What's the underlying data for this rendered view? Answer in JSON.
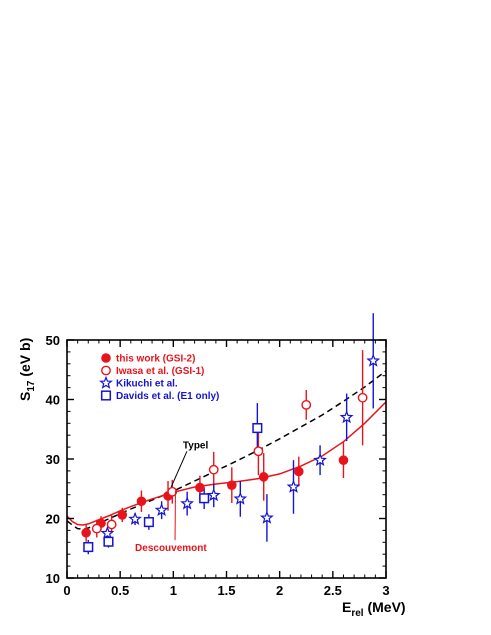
{
  "chart_data": {
    "type": "scatter",
    "xlabel_main": "E",
    "xlabel_sub": "rel",
    "xlabel_unit": " (MeV)",
    "ylabel_main": "S",
    "ylabel_sub": "17",
    "ylabel_unit": " (eV b)",
    "xlim": [
      0,
      3
    ],
    "ylim": [
      10,
      50
    ],
    "xticks": [
      0,
      0.5,
      1,
      1.5,
      2,
      2.5,
      3
    ],
    "xtick_labels": [
      "0",
      "0.5",
      "1",
      "1.5",
      "2",
      "2.5",
      "3"
    ],
    "yticks": [
      10,
      20,
      30,
      40,
      50
    ],
    "ytick_labels": [
      "10",
      "20",
      "30",
      "40",
      "50"
    ],
    "legend_placement": "top-left",
    "colors": {
      "red": "#e8141c",
      "blue": "#1414d2",
      "black": "#000000"
    },
    "series": [
      {
        "name": "this work (GSI-2)",
        "marker": "filled-circle",
        "color": "#e8141c",
        "points": [
          {
            "x": 0.18,
            "y": 17.6,
            "err": 1.5
          },
          {
            "x": 0.32,
            "y": 19.2,
            "err": 1.2
          },
          {
            "x": 0.52,
            "y": 20.6,
            "err": 1.2
          },
          {
            "x": 0.7,
            "y": 22.9,
            "err": 1.8
          },
          {
            "x": 0.95,
            "y": 23.8,
            "err": 2.5
          },
          {
            "x": 1.25,
            "y": 25.2,
            "err": 2.0
          },
          {
            "x": 1.55,
            "y": 25.6,
            "err": 3.0
          },
          {
            "x": 1.85,
            "y": 27.0,
            "err": 4.0
          },
          {
            "x": 2.18,
            "y": 27.9,
            "err": 2.5
          },
          {
            "x": 2.6,
            "y": 29.8,
            "err": 3.0
          }
        ]
      },
      {
        "name": "Iwasa et al. (GSI-1)",
        "marker": "open-circle",
        "color": "#e8141c",
        "points": [
          {
            "x": 0.28,
            "y": 18.3,
            "err": 1.5
          },
          {
            "x": 0.42,
            "y": 19.0,
            "err": 1.5
          },
          {
            "x": 0.99,
            "y": 24.5,
            "err": 2.0
          },
          {
            "x": 1.38,
            "y": 28.2,
            "err": 3.0
          },
          {
            "x": 1.8,
            "y": 31.3,
            "err": 4.0
          },
          {
            "x": 2.25,
            "y": 39.1,
            "err": 2.5
          },
          {
            "x": 2.78,
            "y": 40.3,
            "err": 8.0
          }
        ]
      },
      {
        "name": "Kikuchi et al.",
        "marker": "open-star",
        "color": "#1414d2",
        "points": [
          {
            "x": 0.38,
            "y": 17.5,
            "err": 1.0
          },
          {
            "x": 0.64,
            "y": 19.9,
            "err": 1.0
          },
          {
            "x": 0.89,
            "y": 21.4,
            "err": 1.5
          },
          {
            "x": 1.13,
            "y": 22.5,
            "err": 2.0
          },
          {
            "x": 1.38,
            "y": 23.9,
            "err": 2.0
          },
          {
            "x": 1.63,
            "y": 23.3,
            "err": 3.0
          },
          {
            "x": 1.88,
            "y": 20.1,
            "err": 4.0
          },
          {
            "x": 2.13,
            "y": 25.3,
            "err": 4.5
          },
          {
            "x": 2.38,
            "y": 29.8,
            "err": 2.5
          },
          {
            "x": 2.63,
            "y": 37.0,
            "err": 4.0
          },
          {
            "x": 2.88,
            "y": 46.5,
            "err": 8.0
          }
        ]
      },
      {
        "name": "Davids et al. (E1 only)",
        "marker": "open-square",
        "color": "#1414d2",
        "points": [
          {
            "x": 0.2,
            "y": 15.2,
            "err": 1.2
          },
          {
            "x": 0.39,
            "y": 16.1,
            "err": 1.0
          },
          {
            "x": 0.77,
            "y": 19.4,
            "err": 1.3
          },
          {
            "x": 1.29,
            "y": 23.4,
            "err": 1.8
          },
          {
            "x": 1.79,
            "y": 35.2,
            "err": 4.2
          }
        ]
      }
    ],
    "curves": [
      {
        "label": "Typel",
        "style": "dashed",
        "color": "#000000",
        "x": [
          0.0,
          0.05,
          0.1,
          0.15,
          0.2,
          0.3,
          0.4,
          0.5,
          0.6,
          0.8,
          1.0,
          1.2,
          1.4,
          1.6,
          1.8,
          2.0,
          2.2,
          2.4,
          2.6,
          2.8,
          3.0
        ],
        "y": [
          19.6,
          18.9,
          18.3,
          18.2,
          18.4,
          19.2,
          20.0,
          20.8,
          21.6,
          23.1,
          24.6,
          26.3,
          28.0,
          29.7,
          31.5,
          33.4,
          35.4,
          37.4,
          39.7,
          42.1,
          44.8
        ]
      },
      {
        "label": "Descouvemont",
        "style": "solid",
        "color": "#e8141c",
        "x": [
          0.0,
          0.05,
          0.1,
          0.15,
          0.2,
          0.3,
          0.4,
          0.5,
          0.6,
          0.8,
          1.0,
          1.2,
          1.4,
          1.6,
          1.8,
          2.0,
          2.2,
          2.4,
          2.6,
          2.8,
          3.0
        ],
        "y": [
          20.4,
          19.5,
          19.0,
          18.9,
          19.1,
          19.8,
          20.5,
          21.3,
          22.0,
          23.3,
          24.4,
          25.3,
          25.8,
          26.2,
          26.7,
          27.5,
          28.8,
          30.5,
          32.9,
          36.0,
          39.6
        ]
      }
    ],
    "annotations": [
      {
        "text": "Typel",
        "color": "#000000",
        "x": 1.09,
        "y": 31.8,
        "arrow_to": [
          0.98,
          25.3
        ]
      },
      {
        "text": "Descouvemont",
        "color": "#e8141c",
        "x": 0.64,
        "y": 14.5,
        "arrow_to": [
          1.02,
          24.7
        ]
      }
    ]
  }
}
